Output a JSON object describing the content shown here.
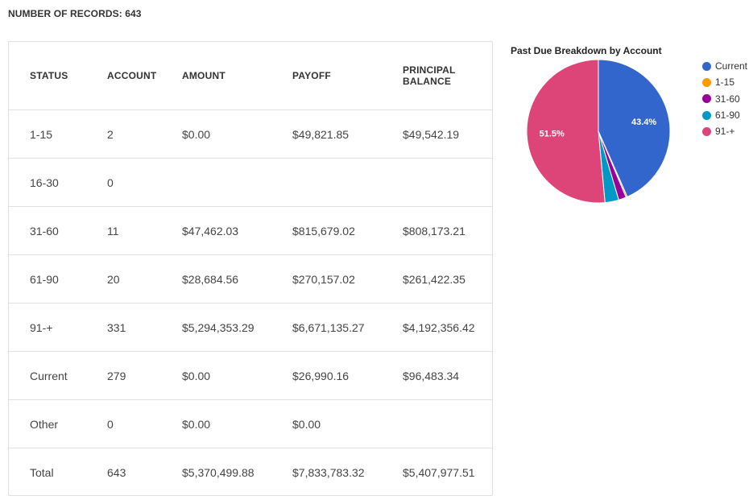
{
  "header": {
    "records_label": "NUMBER OF RECORDS: 643"
  },
  "table": {
    "columns": [
      "STATUS",
      "ACCOUNT",
      "AMOUNT",
      "PAYOFF",
      "PRINCIPAL BALANCE"
    ],
    "rows": [
      [
        "1-15",
        "2",
        "$0.00",
        "$49,821.85",
        "$49,542.19"
      ],
      [
        "16-30",
        "0",
        "",
        "",
        ""
      ],
      [
        "31-60",
        "11",
        "$47,462.03",
        "$815,679.02",
        "$808,173.21"
      ],
      [
        "61-90",
        "20",
        "$28,684.56",
        "$270,157.02",
        "$261,422.35"
      ],
      [
        "91-+",
        "331",
        "$5,294,353.29",
        "$6,671,135.27",
        "$4,192,356.42"
      ],
      [
        "Current",
        "279",
        "$0.00",
        "$26,990.16",
        "$96,483.34"
      ],
      [
        "Other",
        "0",
        "$0.00",
        "$0.00",
        ""
      ],
      [
        "Total",
        "643",
        "$5,370,499.88",
        "$7,833,783.32",
        "$5,407,977.51"
      ]
    ]
  },
  "chart_data": {
    "type": "pie",
    "title": "Past Due Breakdown by Account",
    "legend_position": "right",
    "slices": [
      {
        "label": "Current",
        "value": 279,
        "pct_label": "43.4%",
        "color": "#3366cc"
      },
      {
        "label": "1-15",
        "value": 2,
        "pct_label": "",
        "color": "#ff9900"
      },
      {
        "label": "31-60",
        "value": 11,
        "pct_label": "",
        "color": "#990099"
      },
      {
        "label": "61-90",
        "value": 20,
        "pct_label": "",
        "color": "#0099c6"
      },
      {
        "label": "91-+",
        "value": 331,
        "pct_label": "51.5%",
        "color": "#dd4477"
      }
    ]
  }
}
